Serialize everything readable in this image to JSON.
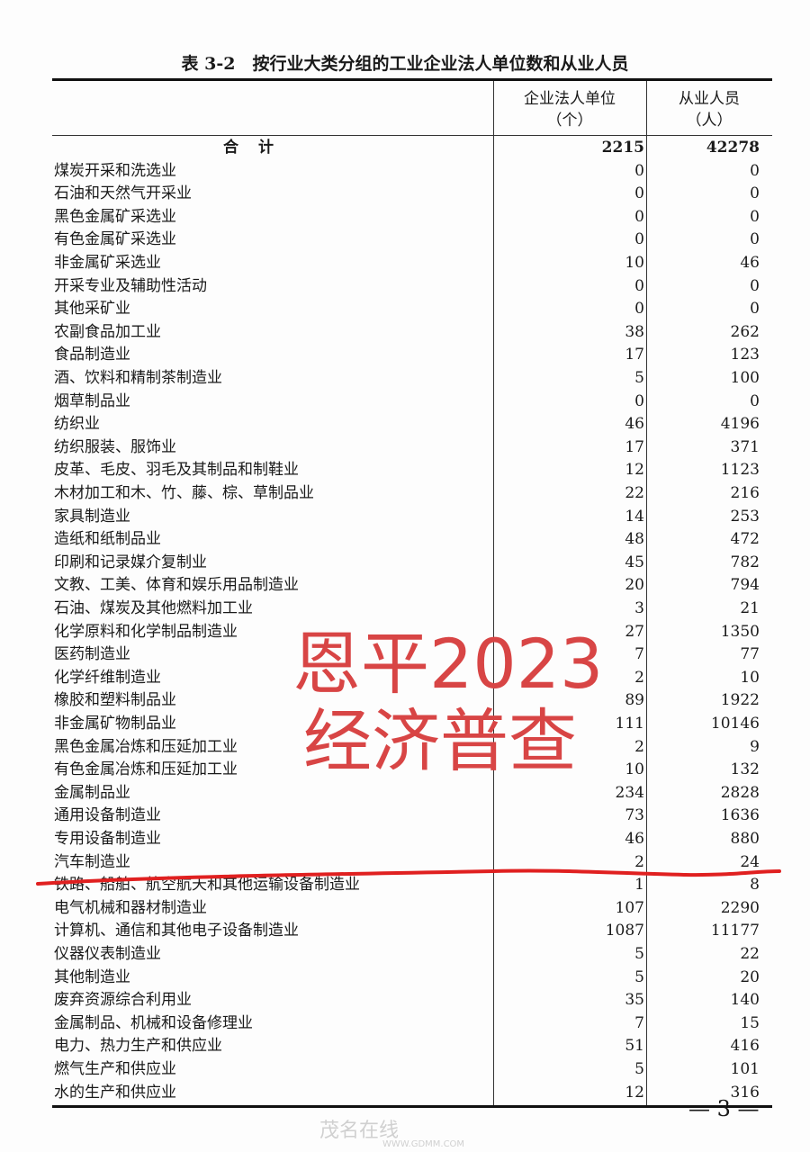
{
  "title": "表 3-2　按行业大类分组的工业企业法人单位数和从业人员",
  "headers": {
    "col1_line1": "企业法人单位",
    "col1_line2": "（个）",
    "col2_line1": "从业人员",
    "col2_line2": "（人）"
  },
  "total": {
    "name": "合计",
    "units": "2215",
    "employees": "42278"
  },
  "rows": [
    {
      "name": "煤炭开采和洗选业",
      "units": "0",
      "employees": "0"
    },
    {
      "name": "石油和天然气开采业",
      "units": "0",
      "employees": "0"
    },
    {
      "name": "黑色金属矿采选业",
      "units": "0",
      "employees": "0"
    },
    {
      "name": "有色金属矿采选业",
      "units": "0",
      "employees": "0"
    },
    {
      "name": "非金属矿采选业",
      "units": "10",
      "employees": "46"
    },
    {
      "name": "开采专业及辅助性活动",
      "units": "0",
      "employees": "0"
    },
    {
      "name": "其他采矿业",
      "units": "0",
      "employees": "0"
    },
    {
      "name": "农副食品加工业",
      "units": "38",
      "employees": "262"
    },
    {
      "name": "食品制造业",
      "units": "17",
      "employees": "123"
    },
    {
      "name": "酒、饮料和精制茶制造业",
      "units": "5",
      "employees": "100"
    },
    {
      "name": "烟草制品业",
      "units": "0",
      "employees": "0"
    },
    {
      "name": "纺织业",
      "units": "46",
      "employees": "4196"
    },
    {
      "name": "纺织服装、服饰业",
      "units": "17",
      "employees": "371"
    },
    {
      "name": "皮革、毛皮、羽毛及其制品和制鞋业",
      "units": "12",
      "employees": "1123"
    },
    {
      "name": "木材加工和木、竹、藤、棕、草制品业",
      "units": "22",
      "employees": "216"
    },
    {
      "name": "家具制造业",
      "units": "14",
      "employees": "253"
    },
    {
      "name": "造纸和纸制品业",
      "units": "48",
      "employees": "472"
    },
    {
      "name": "印刷和记录媒介复制业",
      "units": "45",
      "employees": "782"
    },
    {
      "name": "文教、工美、体育和娱乐用品制造业",
      "units": "20",
      "employees": "794"
    },
    {
      "name": "石油、煤炭及其他燃料加工业",
      "units": "3",
      "employees": "21"
    },
    {
      "name": "化学原料和化学制品制造业",
      "units": "27",
      "employees": "1350"
    },
    {
      "name": "医药制造业",
      "units": "7",
      "employees": "77"
    },
    {
      "name": "化学纤维制造业",
      "units": "2",
      "employees": "10"
    },
    {
      "name": "橡胶和塑料制品业",
      "units": "89",
      "employees": "1922"
    },
    {
      "name": "非金属矿物制品业",
      "units": "111",
      "employees": "10146"
    },
    {
      "name": "黑色金属冶炼和压延加工业",
      "units": "2",
      "employees": "9"
    },
    {
      "name": "有色金属冶炼和压延加工业",
      "units": "10",
      "employees": "132"
    },
    {
      "name": "金属制品业",
      "units": "234",
      "employees": "2828"
    },
    {
      "name": "通用设备制造业",
      "units": "73",
      "employees": "1636"
    },
    {
      "name": "专用设备制造业",
      "units": "46",
      "employees": "880"
    },
    {
      "name": "汽车制造业",
      "units": "2",
      "employees": "24"
    },
    {
      "name": "铁路、船舶、航空航天和其他运输设备制造业",
      "units": "1",
      "employees": "8"
    },
    {
      "name": "电气机械和器材制造业",
      "units": "107",
      "employees": "2290"
    },
    {
      "name": "计算机、通信和其他电子设备制造业",
      "units": "1087",
      "employees": "11177"
    },
    {
      "name": "仪器仪表制造业",
      "units": "5",
      "employees": "22"
    },
    {
      "name": "其他制造业",
      "units": "5",
      "employees": "20"
    },
    {
      "name": "废弃资源综合利用业",
      "units": "35",
      "employees": "140"
    },
    {
      "name": "金属制品、机械和设备修理业",
      "units": "7",
      "employees": "15"
    },
    {
      "name": "电力、热力生产和供应业",
      "units": "51",
      "employees": "416"
    },
    {
      "name": "燃气生产和供应业",
      "units": "5",
      "employees": "101"
    },
    {
      "name": "水的生产和供应业",
      "units": "12",
      "employees": "316"
    }
  ],
  "page_number": "— 3 —",
  "overlay": {
    "line1": "恩平2023",
    "line2": "经济普查",
    "color": "#d84545"
  },
  "annotation_color": "#e02020",
  "watermark": {
    "text": "茂名在线",
    "sub": "WWW.GDMM.COM"
  }
}
